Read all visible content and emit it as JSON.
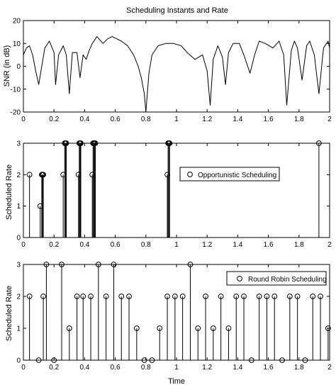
{
  "chart_data": [
    {
      "type": "line",
      "title": "Scheduling Instants and Rate",
      "ylabel": "SNR (in dB)",
      "xlabel": "",
      "xlim": [
        0,
        2
      ],
      "ylim": [
        -20,
        20
      ],
      "xticks": [
        "0",
        "0.2",
        "0.4",
        "0.6",
        "0.8",
        "1",
        "1.2",
        "1.4",
        "1.6",
        "1.8",
        "2"
      ],
      "yticks": [
        "-20",
        "-10",
        "0",
        "10",
        "20"
      ],
      "series": [
        {
          "x": [
            0,
            0.02,
            0.04,
            0.06,
            0.08,
            0.1,
            0.14,
            0.17,
            0.2,
            0.21,
            0.23,
            0.26,
            0.28,
            0.3,
            0.32,
            0.35,
            0.37,
            0.39,
            0.41,
            0.43,
            0.45,
            0.48,
            0.52,
            0.55,
            0.58,
            0.61,
            0.64,
            0.68,
            0.72,
            0.75,
            0.77,
            0.79,
            0.8,
            0.82,
            0.84,
            0.88,
            0.93,
            0.98,
            1.03,
            1.07,
            1.12,
            1.17,
            1.2,
            1.22,
            1.24,
            1.27,
            1.3,
            1.32,
            1.34,
            1.37,
            1.41,
            1.44,
            1.48,
            1.51,
            1.54,
            1.58,
            1.63,
            1.67,
            1.7,
            1.72,
            1.75,
            1.77,
            1.79,
            1.82,
            1.85,
            1.87,
            1.9,
            1.93,
            1.96,
            1.99,
            2.0
          ],
          "y": [
            5,
            8,
            9,
            5,
            -2,
            -8,
            8,
            11,
            6,
            -8,
            5,
            9,
            5,
            -12,
            6,
            6,
            -5,
            5,
            3,
            7,
            10,
            13,
            10,
            12,
            13,
            12,
            11,
            9,
            5,
            0,
            -5,
            -12,
            -20,
            -3,
            5,
            9,
            10,
            10,
            9,
            6,
            3,
            5,
            -2,
            -17,
            3,
            9,
            4,
            -8,
            6,
            10,
            10,
            5,
            -3,
            5,
            11,
            10,
            8,
            11,
            5,
            -17,
            7,
            11,
            8,
            -6,
            9,
            11,
            5,
            -12,
            8,
            11,
            8
          ]
        }
      ]
    },
    {
      "type": "scatter",
      "title": "",
      "ylabel": "Scheduled Rate",
      "xlabel": "",
      "xlim": [
        0,
        2
      ],
      "ylim": [
        0,
        3
      ],
      "xticks": [
        "0",
        "0.2",
        "0.4",
        "0.6",
        "0.8",
        "1",
        "1.2",
        "1.4",
        "1.6",
        "1.8",
        "2"
      ],
      "yticks": [
        "0",
        "1",
        "2",
        "3"
      ],
      "legend": "Opportunistic Scheduling",
      "legend_position": "center-right",
      "series": [
        {
          "name": "Opportunistic Scheduling",
          "x": [
            0.04,
            0.11,
            0.12,
            0.125,
            0.13,
            0.26,
            0.27,
            0.275,
            0.28,
            0.36,
            0.365,
            0.37,
            0.37,
            0.375,
            0.45,
            0.455,
            0.46,
            0.465,
            0.47,
            0.94,
            0.945,
            0.95,
            0.955,
            1.93
          ],
          "y": [
            2,
            1,
            2,
            2,
            2,
            2,
            3,
            3,
            3,
            2,
            3,
            3,
            3,
            3,
            2,
            3,
            3,
            3,
            3,
            2,
            3,
            3,
            3,
            3
          ]
        }
      ]
    },
    {
      "type": "scatter",
      "title": "",
      "ylabel": "Scheduled Rate",
      "xlabel": "Time",
      "xlim": [
        0,
        2
      ],
      "ylim": [
        0,
        3
      ],
      "xticks": [
        "0",
        "0.2",
        "0.4",
        "0.6",
        "0.8",
        "1",
        "1.2",
        "1.4",
        "1.6",
        "1.8",
        "2"
      ],
      "yticks": [
        "0",
        "1",
        "2",
        "3"
      ],
      "legend": "Round Robin Scheduling",
      "legend_position": "top-right",
      "series": [
        {
          "name": "Round Robin Scheduling",
          "x": [
            0.04,
            0.1,
            0.13,
            0.15,
            0.2,
            0.25,
            0.3,
            0.35,
            0.39,
            0.44,
            0.49,
            0.54,
            0.59,
            0.64,
            0.69,
            0.74,
            0.79,
            0.84,
            0.89,
            0.94,
            0.99,
            1.04,
            1.09,
            1.14,
            1.19,
            1.24,
            1.29,
            1.34,
            1.39,
            1.44,
            1.49,
            1.54,
            1.59,
            1.64,
            1.69,
            1.74,
            1.79,
            1.84,
            1.89,
            1.94,
            1.99
          ],
          "y": [
            2,
            0,
            2,
            3,
            0,
            3,
            1,
            2,
            2,
            2,
            3,
            2,
            3,
            2,
            2,
            1,
            0,
            0,
            1,
            2,
            2,
            2,
            3,
            1,
            2,
            1,
            2,
            1,
            2,
            2,
            0,
            2,
            2,
            2,
            0,
            2,
            2,
            0,
            2,
            2,
            1
          ]
        }
      ]
    }
  ]
}
